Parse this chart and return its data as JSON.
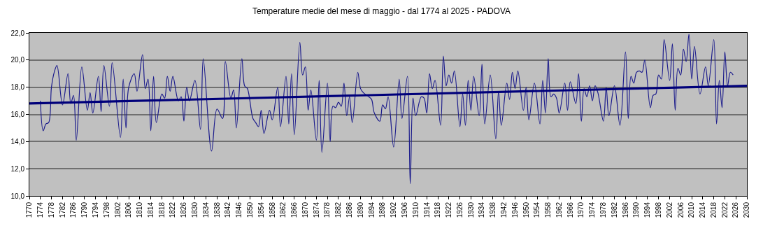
{
  "chart_data": {
    "type": "line",
    "title": "Temperature medie del mese di maggio - dal 1774 al 2025 - PADOVA",
    "xlim": [
      1770,
      2030
    ],
    "xticks": [
      1770,
      1774,
      1778,
      1782,
      1786,
      1790,
      1794,
      1798,
      1802,
      1806,
      1810,
      1814,
      1818,
      1822,
      1826,
      1830,
      1834,
      1838,
      1842,
      1846,
      1850,
      1854,
      1858,
      1862,
      1866,
      1870,
      1874,
      1878,
      1882,
      1886,
      1890,
      1894,
      1898,
      1902,
      1906,
      1910,
      1914,
      1918,
      1922,
      1926,
      1930,
      1934,
      1938,
      1942,
      1946,
      1950,
      1954,
      1958,
      1962,
      1966,
      1970,
      1974,
      1978,
      1982,
      1986,
      1990,
      1994,
      1998,
      2002,
      2006,
      2010,
      2014,
      2018,
      2022,
      2026,
      2030
    ],
    "ylim": [
      10,
      22
    ],
    "yticks": [
      {
        "value": 10,
        "label": "10,0"
      },
      {
        "value": 12,
        "label": "12,0"
      },
      {
        "value": 14,
        "label": "14,0"
      },
      {
        "value": 16,
        "label": "16,0"
      },
      {
        "value": 18,
        "label": "18,0"
      },
      {
        "value": 20,
        "label": "20,0"
      },
      {
        "value": 22,
        "label": "22,0"
      }
    ],
    "grid": "y",
    "series": [
      {
        "color": "#1c1c8c",
        "x": [
          1774,
          1775,
          1776,
          1777,
          1778,
          1779,
          1780,
          1782,
          1784,
          1785,
          1786,
          1787,
          1789,
          1791,
          1792,
          1793,
          1795,
          1796,
          1797,
          1799,
          1800,
          1803,
          1804,
          1805,
          1806,
          1808,
          1809,
          1811,
          1812,
          1813,
          1814,
          1815,
          1816,
          1818,
          1819,
          1820,
          1821,
          1822,
          1824,
          1825,
          1826,
          1827,
          1828,
          1830,
          1832,
          1833,
          1836,
          1838,
          1840,
          1841,
          1843,
          1844,
          1845,
          1847,
          1848,
          1849,
          1851,
          1852,
          1853,
          1854,
          1855,
          1857,
          1858,
          1860,
          1861,
          1863,
          1864,
          1865,
          1866,
          1868,
          1869,
          1870,
          1871,
          1872,
          1874,
          1875,
          1876,
          1878,
          1879,
          1880,
          1881,
          1882,
          1883,
          1884,
          1885,
          1886,
          1887,
          1889,
          1890,
          1891,
          1893,
          1894,
          1895,
          1897,
          1898,
          1899,
          1900,
          1902,
          1904,
          1905,
          1907,
          1908,
          1909,
          1910,
          1912,
          1913,
          1914,
          1915,
          1916,
          1917,
          1919,
          1920,
          1921,
          1922,
          1923,
          1924,
          1926,
          1927,
          1928,
          1929,
          1930,
          1931,
          1933,
          1934,
          1935,
          1937,
          1939,
          1940,
          1941,
          1943,
          1944,
          1945,
          1946,
          1947,
          1949,
          1950,
          1951,
          1953,
          1955,
          1956,
          1957,
          1958,
          1959,
          1960,
          1961,
          1962,
          1964,
          1965,
          1966,
          1968,
          1969,
          1970,
          1971,
          1972,
          1973,
          1974,
          1975,
          1976,
          1978,
          1979,
          1980,
          1982,
          1984,
          1986,
          1987,
          1988,
          1989,
          1990,
          1991,
          1992,
          1993,
          1995,
          1996,
          1997,
          1998,
          1999,
          2000,
          2002,
          2003,
          2004,
          2005,
          2006,
          2007,
          2008,
          2009,
          2010,
          2011,
          2013,
          2015,
          2016,
          2018,
          2019,
          2020,
          2021,
          2022,
          2023,
          2024,
          2025
        ],
        "values": [
          17.0,
          14.8,
          15.3,
          15.4,
          18.0,
          19.1,
          19.6,
          16.7,
          19.0,
          16.8,
          17.4,
          14.1,
          19.5,
          16.3,
          17.6,
          16.1,
          18.8,
          16.2,
          19.6,
          16.6,
          19.8,
          14.3,
          18.6,
          15.0,
          18.0,
          19.0,
          17.7,
          20.4,
          17.9,
          18.6,
          14.8,
          18.8,
          15.4,
          17.5,
          17.2,
          18.8,
          17.7,
          18.8,
          17.0,
          17.3,
          15.5,
          18.0,
          17.0,
          18.5,
          14.9,
          20.1,
          13.3,
          16.4,
          15.7,
          19.9,
          17.2,
          17.8,
          15.0,
          20.1,
          18.1,
          17.9,
          15.7,
          15.4,
          15.1,
          16.3,
          14.6,
          16.3,
          15.6,
          18.0,
          15.1,
          18.8,
          15.3,
          19.0,
          14.5,
          21.3,
          18.9,
          19.5,
          16.3,
          17.8,
          14.1,
          18.5,
          13.2,
          18.3,
          14.0,
          16.6,
          16.5,
          16.9,
          16.6,
          18.3,
          15.9,
          17.3,
          15.4,
          19.1,
          17.9,
          17.6,
          17.3,
          17.1,
          16.1,
          15.5,
          16.7,
          16.4,
          17.3,
          13.6,
          18.6,
          15.7,
          18.8,
          10.9,
          17.2,
          15.9,
          17.3,
          17.2,
          16.1,
          19.0,
          17.9,
          18.5,
          15.2,
          20.3,
          18.1,
          18.9,
          18.3,
          19.2,
          15.1,
          17.5,
          15.2,
          18.5,
          16.3,
          18.8,
          15.9,
          19.7,
          15.3,
          18.9,
          14.2,
          17.7,
          15.2,
          18.3,
          17.1,
          19.1,
          17.9,
          19.2,
          16.3,
          18.0,
          15.6,
          18.3,
          15.3,
          18.5,
          16.1,
          20.1,
          17.3,
          17.5,
          17.2,
          16.1,
          18.3,
          16.3,
          18.4,
          16.8,
          19.0,
          15.5,
          17.9,
          17.3,
          18.1,
          17.0,
          18.1,
          17.6,
          15.5,
          18.0,
          15.9,
          18.1,
          15.2,
          20.6,
          15.7,
          18.8,
          18.3,
          19.1,
          19.2,
          19.1,
          20.0,
          16.5,
          17.4,
          17.5,
          18.9,
          18.6,
          21.5,
          18.5,
          21.2,
          16.3,
          19.4,
          18.9,
          20.8,
          19.9,
          21.9,
          18.6,
          21.0,
          17.5,
          19.5,
          18.1,
          21.5,
          15.3,
          18.5,
          16.5,
          20.6,
          18.1,
          19.1,
          18.9
        ]
      },
      {
        "type": "line",
        "color": "#00007a",
        "x": [
          1770,
          2030
        ],
        "values": [
          16.8,
          18.1
        ]
      }
    ]
  }
}
